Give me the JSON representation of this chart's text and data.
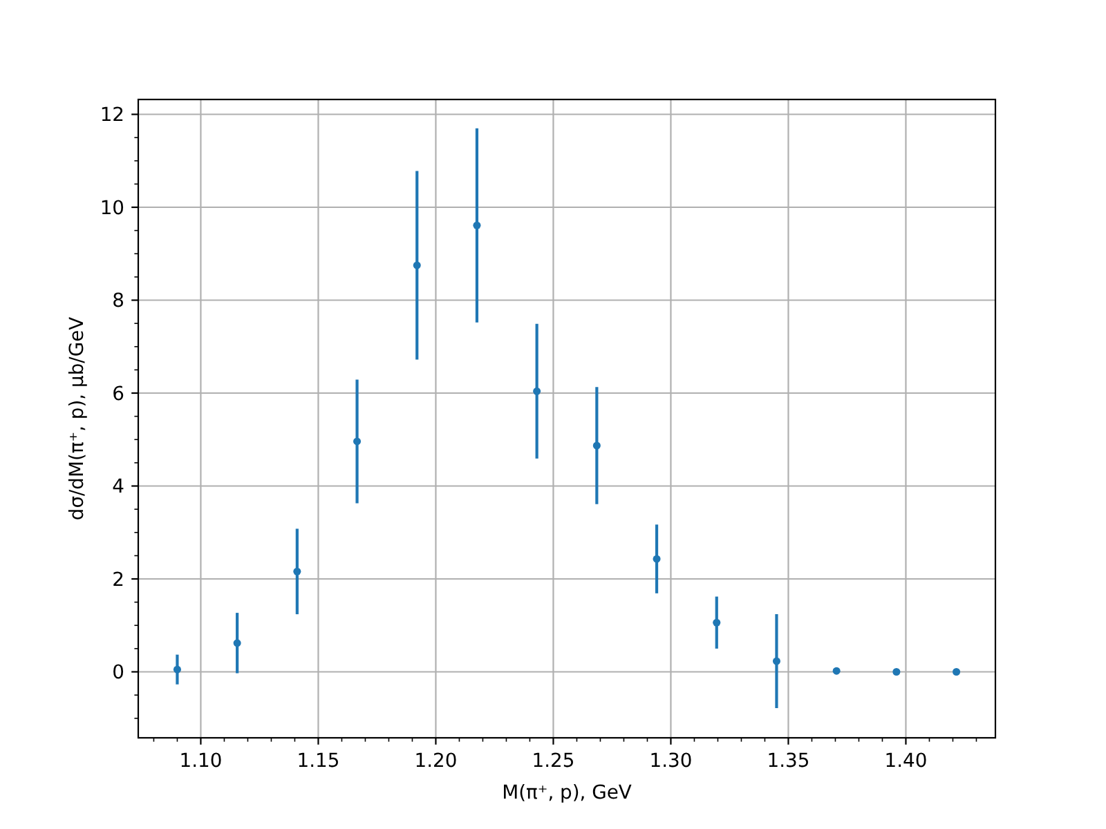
{
  "chart_data": {
    "type": "scatter",
    "xlabel": "M(π⁺, p), GeV",
    "ylabel": "dσ/dM(π⁺, p), μb/GeV",
    "x": [
      1.09,
      1.1155,
      1.141,
      1.1665,
      1.192,
      1.2175,
      1.243,
      1.2685,
      1.294,
      1.3195,
      1.345,
      1.3705,
      1.396,
      1.4215
    ],
    "series": [
      {
        "color": "#1f77b4",
        "values": [
          0.05,
          0.62,
          2.16,
          4.96,
          8.75,
          9.61,
          6.04,
          4.87,
          2.43,
          1.06,
          0.23,
          0.02,
          0.0,
          0.0
        ],
        "errors": [
          0.32,
          0.65,
          0.92,
          1.33,
          2.03,
          2.09,
          1.45,
          1.26,
          0.74,
          0.56,
          1.01,
          0.07,
          null,
          null
        ]
      }
    ],
    "xlim": [
      1.0734,
      1.4381
    ],
    "ylim": [
      -1.42,
      12.32
    ],
    "xticks": [
      {
        "value": 1.08,
        "label": null
      },
      {
        "value": 1.09,
        "label": null
      },
      {
        "value": 1.1,
        "label": "1.10"
      },
      {
        "value": 1.11,
        "label": null
      },
      {
        "value": 1.12,
        "label": null
      },
      {
        "value": 1.13,
        "label": null
      },
      {
        "value": 1.14,
        "label": null
      },
      {
        "value": 1.15,
        "label": "1.15"
      },
      {
        "value": 1.16,
        "label": null
      },
      {
        "value": 1.17,
        "label": null
      },
      {
        "value": 1.18,
        "label": null
      },
      {
        "value": 1.19,
        "label": null
      },
      {
        "value": 1.2,
        "label": "1.20"
      },
      {
        "value": 1.21,
        "label": null
      },
      {
        "value": 1.22,
        "label": null
      },
      {
        "value": 1.23,
        "label": null
      },
      {
        "value": 1.24,
        "label": null
      },
      {
        "value": 1.25,
        "label": "1.25"
      },
      {
        "value": 1.26,
        "label": null
      },
      {
        "value": 1.27,
        "label": null
      },
      {
        "value": 1.28,
        "label": null
      },
      {
        "value": 1.29,
        "label": null
      },
      {
        "value": 1.3,
        "label": "1.30"
      },
      {
        "value": 1.31,
        "label": null
      },
      {
        "value": 1.32,
        "label": null
      },
      {
        "value": 1.33,
        "label": null
      },
      {
        "value": 1.34,
        "label": null
      },
      {
        "value": 1.35,
        "label": "1.35"
      },
      {
        "value": 1.36,
        "label": null
      },
      {
        "value": 1.37,
        "label": null
      },
      {
        "value": 1.38,
        "label": null
      },
      {
        "value": 1.39,
        "label": null
      },
      {
        "value": 1.4,
        "label": "1.40"
      },
      {
        "value": 1.41,
        "label": null
      },
      {
        "value": 1.42,
        "label": null
      },
      {
        "value": 1.43,
        "label": null
      }
    ],
    "yticks": [
      {
        "value": -1,
        "label": null
      },
      {
        "value": -0.5,
        "label": null
      },
      0,
      {
        "value": 0.5,
        "label": null
      },
      {
        "value": 1,
        "label": null
      },
      {
        "value": 1.5,
        "label": null
      },
      2,
      {
        "value": 2.5,
        "label": null
      },
      {
        "value": 3,
        "label": null
      },
      {
        "value": 3.5,
        "label": null
      },
      4,
      {
        "value": 4.5,
        "label": null
      },
      {
        "value": 5,
        "label": null
      },
      {
        "value": 5.5,
        "label": null
      },
      6,
      {
        "value": 6.5,
        "label": null
      },
      {
        "value": 7,
        "label": null
      },
      {
        "value": 7.5,
        "label": null
      },
      8,
      {
        "value": 8.5,
        "label": null
      },
      {
        "value": 9,
        "label": null
      },
      {
        "value": 9.5,
        "label": null
      },
      10,
      {
        "value": 10.5,
        "label": null
      },
      {
        "value": 11,
        "label": null
      },
      {
        "value": 11.5,
        "label": null
      },
      12
    ],
    "grid": true,
    "marker": "circle"
  }
}
